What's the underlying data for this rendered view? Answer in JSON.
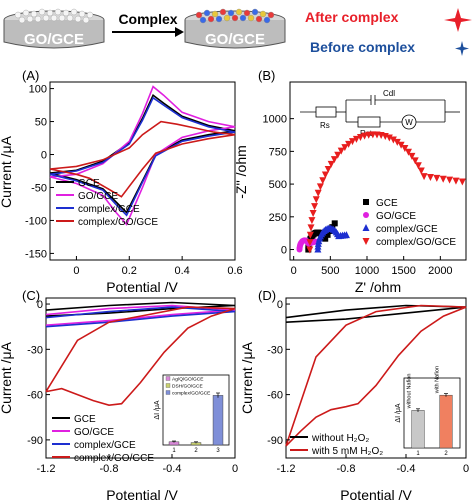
{
  "scheme": {
    "left_electrode": "GO/GCE",
    "right_electrode": "GO/GCE",
    "arrow_label": "Complex",
    "legend_after": "After complex",
    "legend_before": "Before complex",
    "colors": {
      "after": "#e8202a",
      "before": "#1d4f9c"
    }
  },
  "chart_data": [
    {
      "panel": "(A)",
      "type": "line",
      "xlabel": "Potential /V",
      "ylabel": "Current /μA",
      "xlim": [
        -0.1,
        0.6
      ],
      "ylim": [
        -160,
        110
      ],
      "xticks": [
        0.0,
        0.2,
        0.4,
        0.6
      ],
      "yticks": [
        -150,
        -100,
        -50,
        0,
        50,
        100
      ],
      "legend_position": "bottom-left",
      "series": [
        {
          "name": "GCE",
          "color": "#000000",
          "forward": [
            [
              -0.1,
              -28
            ],
            [
              0.0,
              -24
            ],
            [
              0.1,
              -10
            ],
            [
              0.2,
              18
            ],
            [
              0.25,
              55
            ],
            [
              0.29,
              90
            ],
            [
              0.33,
              78
            ],
            [
              0.4,
              58
            ],
            [
              0.5,
              44
            ],
            [
              0.6,
              36
            ]
          ],
          "reverse": [
            [
              0.6,
              36
            ],
            [
              0.5,
              30
            ],
            [
              0.4,
              22
            ],
            [
              0.3,
              0
            ],
            [
              0.25,
              -40
            ],
            [
              0.19,
              -88
            ],
            [
              0.15,
              -72
            ],
            [
              0.1,
              -52
            ],
            [
              0.0,
              -38
            ],
            [
              -0.1,
              -28
            ]
          ]
        },
        {
          "name": "GO/GCE",
          "color": "#e020e0",
          "forward": [
            [
              -0.1,
              -34
            ],
            [
              0.0,
              -30
            ],
            [
              0.1,
              -14
            ],
            [
              0.2,
              20
            ],
            [
              0.25,
              62
            ],
            [
              0.29,
              103
            ],
            [
              0.33,
              90
            ],
            [
              0.4,
              64
            ],
            [
              0.5,
              50
            ],
            [
              0.6,
              42
            ]
          ],
          "reverse": [
            [
              0.6,
              42
            ],
            [
              0.5,
              36
            ],
            [
              0.4,
              26
            ],
            [
              0.3,
              0
            ],
            [
              0.25,
              -50
            ],
            [
              0.19,
              -106
            ],
            [
              0.15,
              -88
            ],
            [
              0.1,
              -62
            ],
            [
              0.0,
              -44
            ],
            [
              -0.1,
              -34
            ]
          ]
        },
        {
          "name": "complex/GCE",
          "color": "#1d2fd0",
          "forward": [
            [
              -0.1,
              -30
            ],
            [
              0.0,
              -25
            ],
            [
              0.1,
              -12
            ],
            [
              0.2,
              16
            ],
            [
              0.25,
              52
            ],
            [
              0.29,
              86
            ],
            [
              0.33,
              75
            ],
            [
              0.4,
              56
            ],
            [
              0.5,
              42
            ],
            [
              0.6,
              34
            ]
          ],
          "reverse": [
            [
              0.6,
              34
            ],
            [
              0.5,
              28
            ],
            [
              0.4,
              20
            ],
            [
              0.3,
              -2
            ],
            [
              0.25,
              -42
            ],
            [
              0.19,
              -92
            ],
            [
              0.15,
              -76
            ],
            [
              0.1,
              -54
            ],
            [
              0.0,
              -40
            ],
            [
              -0.1,
              -30
            ]
          ]
        },
        {
          "name": "complex/GO/GCE",
          "color": "#cc1a1a",
          "forward": [
            [
              -0.1,
              -22
            ],
            [
              0.0,
              -18
            ],
            [
              0.1,
              -8
            ],
            [
              0.2,
              10
            ],
            [
              0.25,
              30
            ],
            [
              0.32,
              50
            ],
            [
              0.38,
              46
            ],
            [
              0.45,
              40
            ],
            [
              0.52,
              34
            ],
            [
              0.6,
              30
            ]
          ],
          "reverse": [
            [
              0.6,
              30
            ],
            [
              0.5,
              24
            ],
            [
              0.4,
              16
            ],
            [
              0.3,
              2
            ],
            [
              0.25,
              -22
            ],
            [
              0.17,
              -64
            ],
            [
              0.12,
              -52
            ],
            [
              0.05,
              -36
            ],
            [
              0.0,
              -30
            ],
            [
              -0.1,
              -22
            ]
          ]
        }
      ]
    },
    {
      "panel": "(B)",
      "type": "scatter",
      "xlabel": "Z' /ohm",
      "ylabel": "-Z'' /ohm",
      "xlim": [
        -50,
        2350
      ],
      "ylim": [
        -80,
        1280
      ],
      "xticks": [
        0,
        500,
        1000,
        1500,
        2000
      ],
      "yticks": [
        0,
        250,
        500,
        750,
        1000
      ],
      "legend_position": "center-right",
      "circuit_labels": {
        "cdl": "Cdl",
        "rs": "Rs",
        "rct": "Rct",
        "w": "W"
      },
      "series": [
        {
          "name": "GCE",
          "marker": "square",
          "color": "#000000",
          "arc_center": [
            330,
            0
          ],
          "arc_radius": 130,
          "tail_end": [
            560,
            200
          ]
        },
        {
          "name": "GO/GCE",
          "marker": "circle",
          "color": "#e020e0",
          "arc_center": [
            150,
            0
          ],
          "arc_radius": 70,
          "tail_end": [
            300,
            60
          ]
        },
        {
          "name": "complex/GCE",
          "marker": "triangle-up",
          "color": "#1d2fd0",
          "arc_center": [
            490,
            0
          ],
          "arc_radius": 160,
          "tail_end": [
            720,
            110
          ]
        },
        {
          "name": "complex/GO/GCE",
          "marker": "triangle-down",
          "color": "#e81e1e",
          "arc_center": [
            1100,
            0
          ],
          "arc_radius": 880,
          "tail_end": [
            2300,
            520
          ]
        }
      ]
    },
    {
      "panel": "(C)",
      "type": "line",
      "xlabel": "Potential /V",
      "ylabel": "Current /μA",
      "xlim": [
        -1.2,
        0.0
      ],
      "ylim": [
        -102,
        4
      ],
      "xticks": [
        -1.2,
        -0.8,
        -0.4,
        0.0
      ],
      "yticks": [
        -90,
        -60,
        -30,
        0
      ],
      "legend_position": "bottom-left",
      "series": [
        {
          "name": "GCE",
          "color": "#000000",
          "forward": [
            [
              -1.2,
              -8
            ],
            [
              -0.8,
              -6
            ],
            [
              -0.4,
              -3
            ],
            [
              0.0,
              -1
            ]
          ],
          "reverse": [
            [
              0.0,
              2
            ],
            [
              -0.4,
              1
            ],
            [
              -0.8,
              -1
            ],
            [
              -1.2,
              -4
            ]
          ]
        },
        {
          "name": "GO/GCE",
          "color": "#e020e0",
          "forward": [
            [
              -1.2,
              -14
            ],
            [
              -0.8,
              -11
            ],
            [
              -0.4,
              -7
            ],
            [
              0.0,
              -4
            ]
          ],
          "reverse": [
            [
              0.0,
              1
            ],
            [
              -0.4,
              -1
            ],
            [
              -0.8,
              -3
            ],
            [
              -1.2,
              -7
            ]
          ]
        },
        {
          "name": "complex/GCE",
          "color": "#1d2fd0",
          "forward": [
            [
              -1.2,
              -15
            ],
            [
              -0.8,
              -12
            ],
            [
              -0.4,
              -8
            ],
            [
              0.0,
              -5
            ]
          ],
          "reverse": [
            [
              0.0,
              0
            ],
            [
              -0.4,
              -2
            ],
            [
              -0.8,
              -5
            ],
            [
              -1.2,
              -9
            ]
          ]
        },
        {
          "name": "complex/GO/GCE",
          "color": "#cc1a1a",
          "forward": [
            [
              -1.2,
              -58
            ],
            [
              -1.1,
              -56
            ],
            [
              -1.0,
              -60
            ],
            [
              -0.9,
              -64
            ],
            [
              -0.8,
              -67
            ],
            [
              -0.72,
              -66
            ],
            [
              -0.6,
              -52
            ],
            [
              -0.45,
              -32
            ],
            [
              -0.3,
              -16
            ],
            [
              -0.15,
              -8
            ],
            [
              0.0,
              -3
            ]
          ],
          "reverse": [
            [
              0.0,
              0
            ],
            [
              -0.3,
              -2
            ],
            [
              -0.6,
              -8
            ],
            [
              -0.8,
              -12
            ],
            [
              -1.0,
              -24
            ],
            [
              -1.2,
              -58
            ]
          ]
        }
      ],
      "inset": {
        "type": "bar",
        "ylabel": "ΔI /μA",
        "categories": [
          "1",
          "2",
          "3"
        ],
        "values": [
          4,
          3,
          62
        ],
        "errors": [
          1,
          1,
          3
        ],
        "colors": [
          "#d88ad8",
          "#c8d070",
          "#7f8fd8"
        ],
        "legend": [
          "Ag/Q/GO/GCE",
          "DSH/GO/GCE",
          "complex/GO/GCE"
        ]
      }
    },
    {
      "panel": "(D)",
      "type": "line",
      "xlabel": "Potential /V",
      "ylabel": "Current /μA",
      "xlim": [
        -1.2,
        0.0
      ],
      "ylim": [
        -102,
        4
      ],
      "xticks": [
        -1.2,
        -0.8,
        -0.4,
        0.0
      ],
      "yticks": [
        -90,
        -60,
        -30,
        0
      ],
      "legend_position": "bottom-left",
      "series": [
        {
          "name": "without H₂O₂",
          "color": "#000000",
          "forward": [
            [
              -1.2,
              -12
            ],
            [
              -0.8,
              -10
            ],
            [
              -0.4,
              -6
            ],
            [
              0.0,
              -2
            ]
          ],
          "reverse": [
            [
              0.0,
              1
            ],
            [
              -0.4,
              -1
            ],
            [
              -0.8,
              -4
            ],
            [
              -1.2,
              -9
            ]
          ]
        },
        {
          "name": "with 5 mM H₂O₂",
          "color": "#cc1a1a",
          "forward": [
            [
              -1.2,
              -94
            ],
            [
              -1.1,
              -84
            ],
            [
              -1.0,
              -75
            ],
            [
              -0.9,
              -70
            ],
            [
              -0.8,
              -68
            ],
            [
              -0.72,
              -66
            ],
            [
              -0.6,
              -54
            ],
            [
              -0.45,
              -34
            ],
            [
              -0.3,
              -18
            ],
            [
              -0.15,
              -8
            ],
            [
              0.0,
              -2
            ]
          ],
          "reverse": [
            [
              0.0,
              1
            ],
            [
              -0.3,
              -1
            ],
            [
              -0.6,
              -5
            ],
            [
              -0.8,
              -14
            ],
            [
              -1.0,
              -35
            ],
            [
              -1.2,
              -94
            ]
          ]
        }
      ],
      "inset": {
        "type": "bar",
        "ylabel": "ΔI /μA",
        "categories": [
          "1",
          "2"
        ],
        "values": [
          47,
          66
        ],
        "errors": [
          2,
          2
        ],
        "colors": [
          "#c8c8c8",
          "#f08060"
        ],
        "bar_labels": [
          "without Nafion",
          "with Nafion"
        ]
      }
    }
  ]
}
